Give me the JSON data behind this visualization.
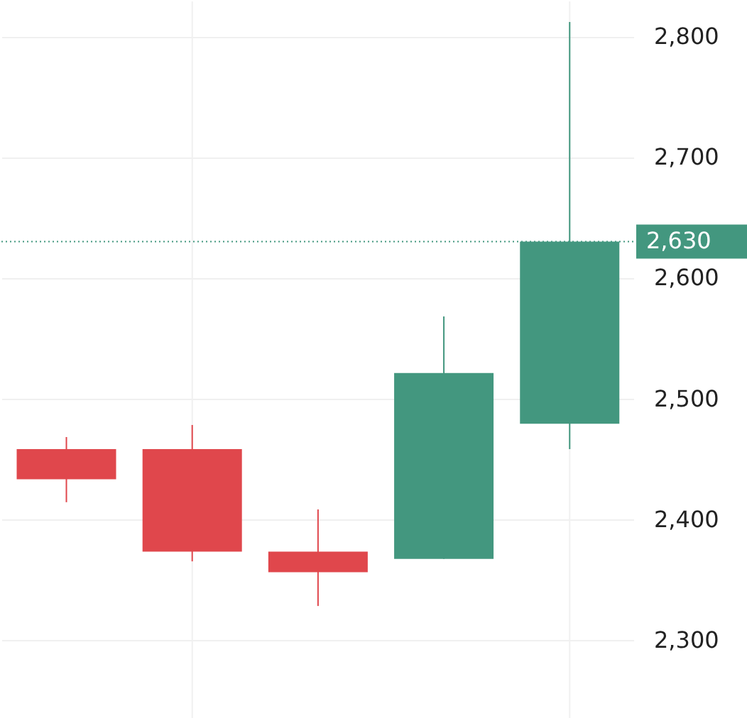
{
  "chart_data": {
    "type": "candlestick",
    "categories": [
      null,
      null,
      null,
      null,
      null
    ],
    "ohlc": [
      [
        2458,
        2468,
        2414,
        2433
      ],
      [
        2458,
        2478,
        2365,
        2373
      ],
      [
        2373,
        2408,
        2328,
        2356
      ],
      [
        2367,
        2568,
        2367,
        2521
      ],
      [
        2479,
        2812,
        2458,
        2630
      ]
    ],
    "ylim": [
      2234,
      2829
    ],
    "yticks": [
      {
        "value": 2300,
        "label": "2,300"
      },
      {
        "value": 2400,
        "label": "2,400"
      },
      {
        "value": 2500,
        "label": "2,500"
      },
      {
        "value": 2600,
        "label": "2,600"
      },
      {
        "value": 2700,
        "label": "2,700"
      },
      {
        "value": 2800,
        "label": "2,800"
      }
    ],
    "colors": [
      "#e0474c",
      "#e0474c",
      "#e0474c",
      "#43977f",
      "#43977f"
    ],
    "ref_lines": [
      {
        "axis": "y",
        "value": 2630,
        "label": "2,630",
        "color": "#43977f",
        "line_style": "dotted"
      }
    ],
    "grid": true,
    "tick_labels": "y"
  }
}
